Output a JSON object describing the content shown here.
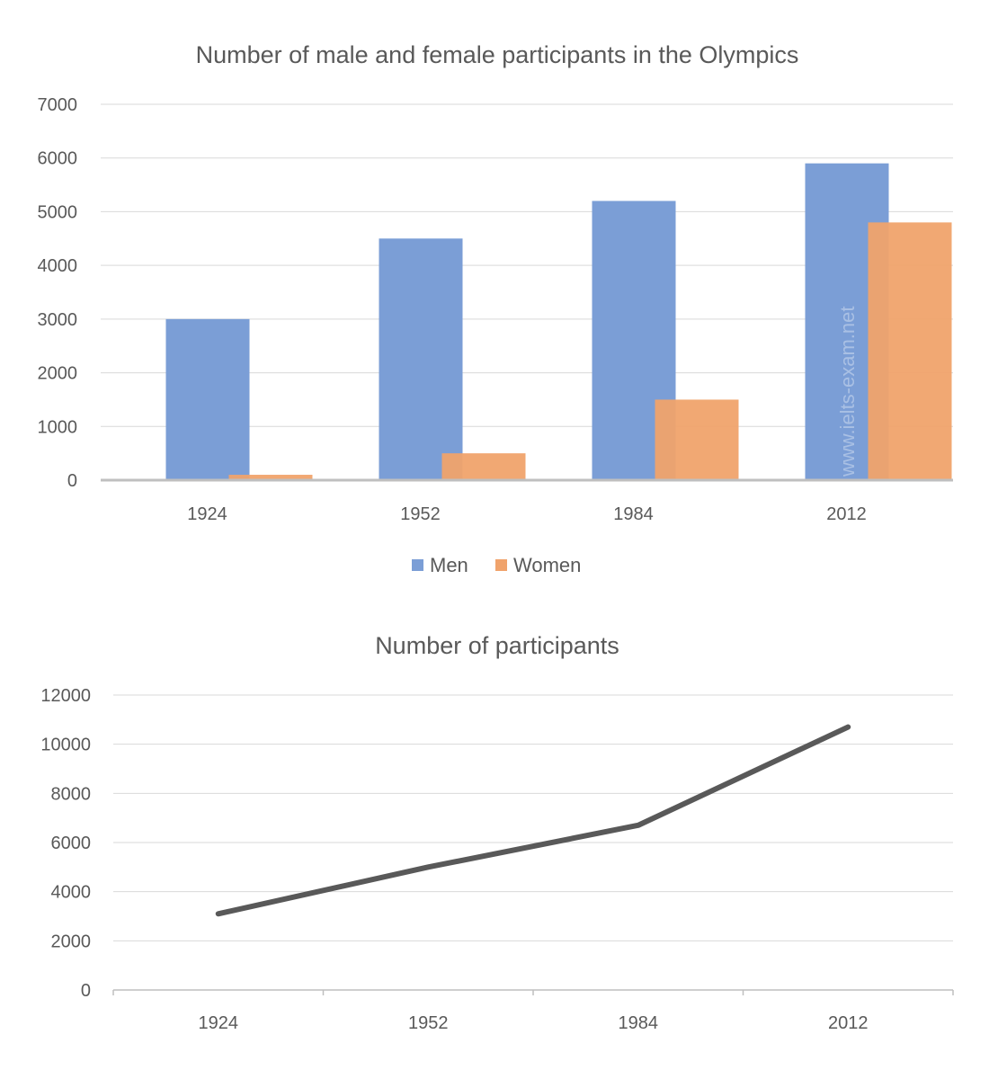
{
  "chart_data": [
    {
      "type": "bar",
      "title": "Number of male and female participants in the Olympics",
      "categories": [
        "1924",
        "1952",
        "1984",
        "2012"
      ],
      "series": [
        {
          "name": "Men",
          "values": [
            3000,
            4500,
            5200,
            5900
          ],
          "color": "#7b9ed6"
        },
        {
          "name": "Women",
          "values": [
            100,
            500,
            1500,
            4800
          ],
          "color": "#f0a36c"
        }
      ],
      "ylim": [
        0,
        7000
      ],
      "yticks": [
        0,
        1000,
        2000,
        3000,
        4000,
        5000,
        6000,
        7000
      ],
      "grid": true,
      "legend": "bottom",
      "watermark": "www.ielts-exam.net"
    },
    {
      "type": "line",
      "title": "Number of participants",
      "categories": [
        "1924",
        "1952",
        "1984",
        "2012"
      ],
      "series": [
        {
          "values": [
            3100,
            5000,
            6700,
            10700
          ],
          "color": "#595959"
        }
      ],
      "ylim": [
        0,
        12000
      ],
      "yticks": [
        0,
        2000,
        4000,
        6000,
        8000,
        10000,
        12000
      ],
      "grid": true
    }
  ]
}
